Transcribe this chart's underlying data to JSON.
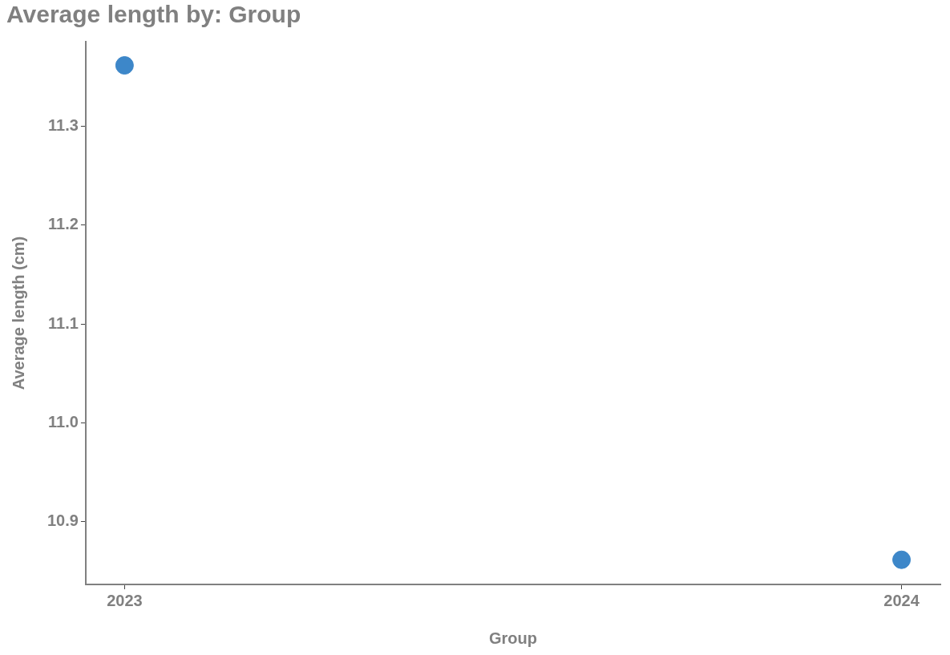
{
  "chart_data": {
    "type": "scatter",
    "title": "Average length by: Group",
    "xlabel": "Group",
    "ylabel": "Average length (cm)",
    "categories": [
      "2023",
      "2024"
    ],
    "series": [
      {
        "color": "#3d87c9",
        "values": [
          11.362,
          10.861
        ]
      }
    ],
    "ylim": [
      10.836,
      11.386
    ],
    "yticks": [
      {
        "value": 10.9,
        "label": "10.9"
      },
      {
        "value": 11.0,
        "label": "11.0"
      },
      {
        "value": 11.1,
        "label": "11.1"
      },
      {
        "value": 11.2,
        "label": "11.2"
      },
      {
        "value": 11.3,
        "label": "11.3"
      }
    ],
    "grid": false,
    "legend": false,
    "marker": "circle"
  }
}
